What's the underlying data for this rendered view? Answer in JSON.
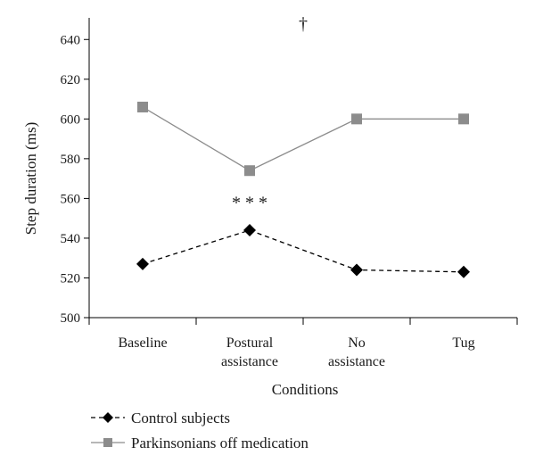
{
  "chart_data": {
    "type": "line",
    "categories": [
      "Baseline",
      "Postural\nassistance",
      "No\nassistance",
      "Tug"
    ],
    "xlabel": "Conditions",
    "ylabel": "Step duration (ms)",
    "ylim": [
      500,
      650
    ],
    "yticks": [
      500,
      520,
      540,
      560,
      580,
      600,
      620,
      640
    ],
    "grid": false,
    "legend_position": "bottom-left",
    "series": [
      {
        "name": "Control subjects",
        "values": [
          527,
          544,
          524,
          523
        ],
        "color": "#000000",
        "line_style": "dashed",
        "marker": "diamond"
      },
      {
        "name": "Parkinsonians off medication",
        "values": [
          606,
          574,
          600,
          600
        ],
        "color": "#8c8c8c",
        "line_style": "solid",
        "marker": "square"
      }
    ],
    "annotations": [
      {
        "text": "* * *",
        "category_index": 1,
        "y": 555
      },
      {
        "text": "†",
        "category_index": 1.5,
        "y": 645
      }
    ]
  }
}
